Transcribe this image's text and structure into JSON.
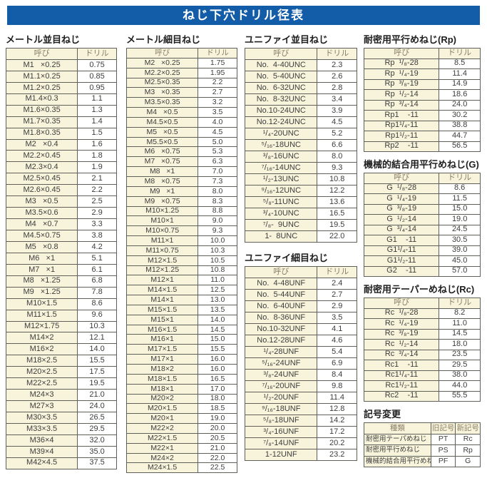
{
  "banner": {
    "title": "ねじ下穴ドリル径表"
  },
  "sections": {
    "metric_coarse": {
      "title": "メートル並目ねじ",
      "headers": [
        "呼び",
        "ドリル"
      ],
      "rows": [
        [
          "M1   ×0.25",
          "0.75"
        ],
        [
          "M1.1×0.25",
          "0.85"
        ],
        [
          "M1.2×0.25",
          "0.95"
        ],
        [
          "M1.4×0.3",
          "1.1"
        ],
        [
          "M1.6×0.35",
          "1.3"
        ],
        [
          "M1.7×0.35",
          "1.4"
        ],
        [
          "M1.8×0.35",
          "1.5"
        ],
        [
          "M2   ×0.4",
          "1.6"
        ],
        [
          "M2.2×0.45",
          "1.8"
        ],
        [
          "M2.3×0.4",
          "1.9"
        ],
        [
          "M2.5×0.45",
          "2.1"
        ],
        [
          "M2.6×0.45",
          "2.2"
        ],
        [
          "M3   ×0.5",
          "2.5"
        ],
        [
          "M3.5×0.6",
          "2.9"
        ],
        [
          "M4   ×0.7",
          "3.3"
        ],
        [
          "M4.5×0.75",
          "3.8"
        ],
        [
          "M5   ×0.8",
          "4.2"
        ],
        [
          "M6   ×1",
          "5.1"
        ],
        [
          "M7   ×1",
          "6.1"
        ],
        [
          "M8   ×1.25",
          "6.8"
        ],
        [
          "M9   ×1.25",
          "7.8"
        ],
        [
          "M10×1.5",
          "8.6"
        ],
        [
          "M11×1.5",
          "9.6"
        ],
        [
          "M12×1.75",
          "10.3"
        ],
        [
          "M14×2",
          "12.1"
        ],
        [
          "M16×2",
          "14.0"
        ],
        [
          "M18×2.5",
          "15.5"
        ],
        [
          "M20×2.5",
          "17.5"
        ],
        [
          "M22×2.5",
          "19.5"
        ],
        [
          "M24×3",
          "21.0"
        ],
        [
          "M27×3",
          "24.0"
        ],
        [
          "M30×3.5",
          "26.5"
        ],
        [
          "M33×3.5",
          "29.5"
        ],
        [
          "M36×4",
          "32.0"
        ],
        [
          "M39×4",
          "35.0"
        ],
        [
          "M42×4.5",
          "37.5"
        ]
      ]
    },
    "metric_fine": {
      "title": "メートル細目ねじ",
      "headers": [
        "呼び",
        "ドリル"
      ],
      "rows": [
        [
          "M2   ×0.25",
          "1.75"
        ],
        [
          "M2.2×0.25",
          "1.95"
        ],
        [
          "M2.5×0.35",
          "2.2"
        ],
        [
          "M3   ×0.35",
          "2.7"
        ],
        [
          "M3.5×0.35",
          "3.2"
        ],
        [
          "M4   ×0.5",
          "3.5"
        ],
        [
          "M4.5×0.5",
          "4.0"
        ],
        [
          "M5   ×0.5",
          "4.5"
        ],
        [
          "M5.5×0.5",
          "5.0"
        ],
        [
          "M6   ×0.75",
          "5.3"
        ],
        [
          "M7   ×0.75",
          "6.3"
        ],
        [
          "M8   ×1",
          "7.0"
        ],
        [
          "M8   ×0.75",
          "7.3"
        ],
        [
          "M9   ×1",
          "8.0"
        ],
        [
          "M9   ×0.75",
          "8.3"
        ],
        [
          "M10×1.25",
          "8.8"
        ],
        [
          "M10×1",
          "9.0"
        ],
        [
          "M10×0.75",
          "9.3"
        ],
        [
          "M11×1",
          "10.0"
        ],
        [
          "M11×0.75",
          "10.3"
        ],
        [
          "M12×1.5",
          "10.5"
        ],
        [
          "M12×1.25",
          "10.8"
        ],
        [
          "M12×1",
          "11.0"
        ],
        [
          "M14×1.5",
          "12.5"
        ],
        [
          "M14×1",
          "13.0"
        ],
        [
          "M15×1.5",
          "13.5"
        ],
        [
          "M15×1",
          "14.0"
        ],
        [
          "M16×1.5",
          "14.5"
        ],
        [
          "M16×1",
          "15.0"
        ],
        [
          "M17×1.5",
          "15.5"
        ],
        [
          "M17×1",
          "16.0"
        ],
        [
          "M18×2",
          "16.0"
        ],
        [
          "M18×1.5",
          "16.5"
        ],
        [
          "M18×1",
          "17.0"
        ],
        [
          "M20×2",
          "18.0"
        ],
        [
          "M20×1.5",
          "18.5"
        ],
        [
          "M20×1",
          "19.0"
        ],
        [
          "M22×2",
          "20.0"
        ],
        [
          "M22×1.5",
          "20.5"
        ],
        [
          "M22×1",
          "21.0"
        ],
        [
          "M24×2",
          "22.0"
        ],
        [
          "M24×1.5",
          "22.5"
        ]
      ]
    },
    "unified_coarse": {
      "title": "ユニファイ並目ねじ",
      "headers": [
        "呼び",
        "ドリル"
      ],
      "rows": [
        [
          "No.  4-40UNC",
          "2.3"
        ],
        [
          "No.  5-40UNC",
          "2.6"
        ],
        [
          "No.  6-32UNC",
          "2.8"
        ],
        [
          "No.  8-32UNC",
          "3.4"
        ],
        [
          "No.10-24UNC",
          "3.9"
        ],
        [
          "No.12-24UNC",
          "4.5"
        ],
        [
          "¹/₄-20UNC",
          "5.2"
        ],
        [
          "⁵/₁₆-18UNC",
          "6.6"
        ],
        [
          "³/₈-16UNC",
          "8.0"
        ],
        [
          "⁷/₁₆-14UNC",
          "9.3"
        ],
        [
          "¹/₂-13UNC",
          "10.8"
        ],
        [
          "⁹/₁₆-12UNC",
          "12.2"
        ],
        [
          "⁵/₈-11UNC",
          "13.6"
        ],
        [
          "³/₄-10UNC",
          "16.5"
        ],
        [
          "⁷/₈-  9UNC",
          "19.5"
        ],
        [
          "1-  8UNC",
          "22.0"
        ]
      ]
    },
    "unified_fine": {
      "title": "ユニファイ細目ねじ",
      "headers": [
        "呼び",
        "ドリル"
      ],
      "rows": [
        [
          "No.  4-48UNF",
          "2.4"
        ],
        [
          "No.  5-44UNF",
          "2.7"
        ],
        [
          "No.  6-40UNF",
          "2.9"
        ],
        [
          "No.  8-36UNF",
          "3.5"
        ],
        [
          "No.10-32UNF",
          "4.1"
        ],
        [
          "No.12-28UNF",
          "4.6"
        ],
        [
          "¹/₄-28UNF",
          "5.4"
        ],
        [
          "⁵/₁₆-24UNF",
          "6.9"
        ],
        [
          "³/₈-24UNF",
          "8.4"
        ],
        [
          "⁷/₁₆-20UNF",
          "9.8"
        ],
        [
          "¹/₂-20UNF",
          "11.4"
        ],
        [
          "⁹/₁₆-18UNF",
          "12.8"
        ],
        [
          "⁵/₈-18UNF",
          "14.2"
        ],
        [
          "³/₄-16UNF",
          "17.2"
        ],
        [
          "⁷/₈-14UNF",
          "20.2"
        ],
        [
          "1-12UNF",
          "23.2"
        ]
      ]
    },
    "rp": {
      "title": "耐密用平行めねじ(Rp)",
      "headers": [
        "呼び",
        "ドリル"
      ],
      "rows": [
        [
          "Rp  ¹/₈-28",
          "8.5"
        ],
        [
          "Rp  ¹/₄-19",
          "11.4"
        ],
        [
          "Rp  ³/₈-19",
          "14.9"
        ],
        [
          "Rp  ¹/₂-14",
          "18.6"
        ],
        [
          "Rp  ³/₄-14",
          "24.0"
        ],
        [
          "Rp1    -11",
          "30.2"
        ],
        [
          "Rp1¹/₄-11",
          "38.8"
        ],
        [
          "Rp1¹/₂-11",
          "44.7"
        ],
        [
          "Rp2    -11",
          "56.5"
        ]
      ]
    },
    "g": {
      "title": "機械的結合用平行めねじ(G)",
      "headers": [
        "呼び",
        "ドリル"
      ],
      "rows": [
        [
          "G  ¹/₈-28",
          "8.6"
        ],
        [
          "G  ¹/₄-19",
          "11.5"
        ],
        [
          "G  ³/₈-19",
          "15.0"
        ],
        [
          "G  ¹/₂-14",
          "19.0"
        ],
        [
          "G  ³/₄-14",
          "24.5"
        ],
        [
          "G1    -11",
          "30.5"
        ],
        [
          "G1¹/₄-11",
          "39.0"
        ],
        [
          "G1¹/₂-11",
          "45.0"
        ],
        [
          "G2    -11",
          "57.0"
        ]
      ]
    },
    "rc": {
      "title": "耐密用テーパーめねじ(Rc)",
      "headers": [
        "呼び",
        "ドリル"
      ],
      "rows": [
        [
          "Rc  ¹/₈-28",
          "8.2"
        ],
        [
          "Rc  ¹/₄-19",
          "11.0"
        ],
        [
          "Rc  ³/₈-19",
          "14.5"
        ],
        [
          "Rc  ¹/₂-14",
          "18.0"
        ],
        [
          "Rc  ³/₄-14",
          "23.5"
        ],
        [
          "Rc1    -11",
          "29.5"
        ],
        [
          "Rc1¹/₄-11",
          "38.0"
        ],
        [
          "Rc1¹/₂-11",
          "44.0"
        ],
        [
          "Rc2    -11",
          "55.5"
        ]
      ]
    },
    "symbol_change": {
      "title": "記号変更",
      "headers": [
        "種類",
        "旧記号",
        "新記号"
      ],
      "rows": [
        [
          "耐密用テーパめねじ",
          "PT",
          "Rc"
        ],
        [
          "耐密用平行めねじ",
          "PS",
          "Rp"
        ],
        [
          "機械的結合用平行めねじ",
          "PF",
          "G"
        ]
      ]
    }
  }
}
